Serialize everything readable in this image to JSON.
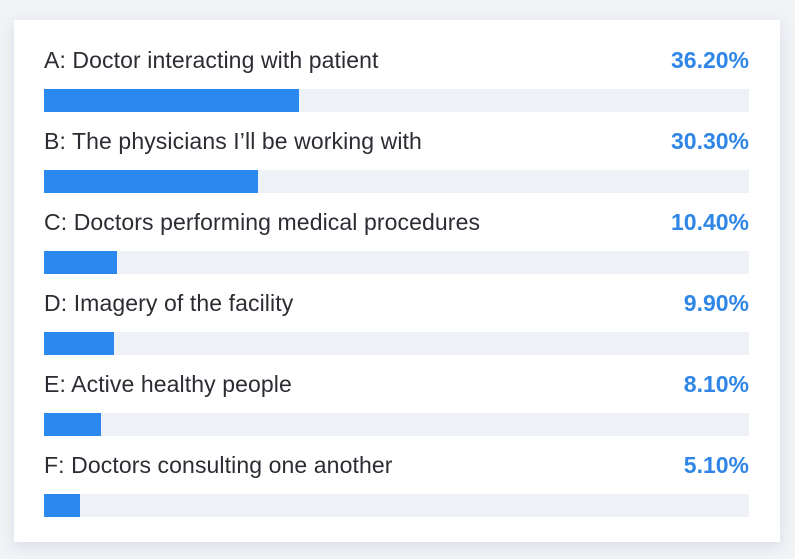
{
  "colors": {
    "accent": "#2f86e6",
    "bar_fill": "#2a88ee",
    "bar_track": "#eef1f6",
    "text": "#2b2d33"
  },
  "chart_data": {
    "type": "bar",
    "orientation": "horizontal",
    "categories": [
      "A: Doctor interacting with patient",
      "B: The physicians I’ll be working with",
      "C: Doctors performing medical procedures",
      "D: Imagery of the facility",
      "E: Active healthy people",
      "F: Doctors consulting one another"
    ],
    "values": [
      36.2,
      30.3,
      10.4,
      9.9,
      8.1,
      5.1
    ],
    "value_labels": [
      "36.20%",
      "30.30%",
      "10.40%",
      "9.90%",
      "8.10%",
      "5.10%"
    ],
    "xlim": [
      0,
      100
    ],
    "grid": false,
    "legend": "none"
  }
}
